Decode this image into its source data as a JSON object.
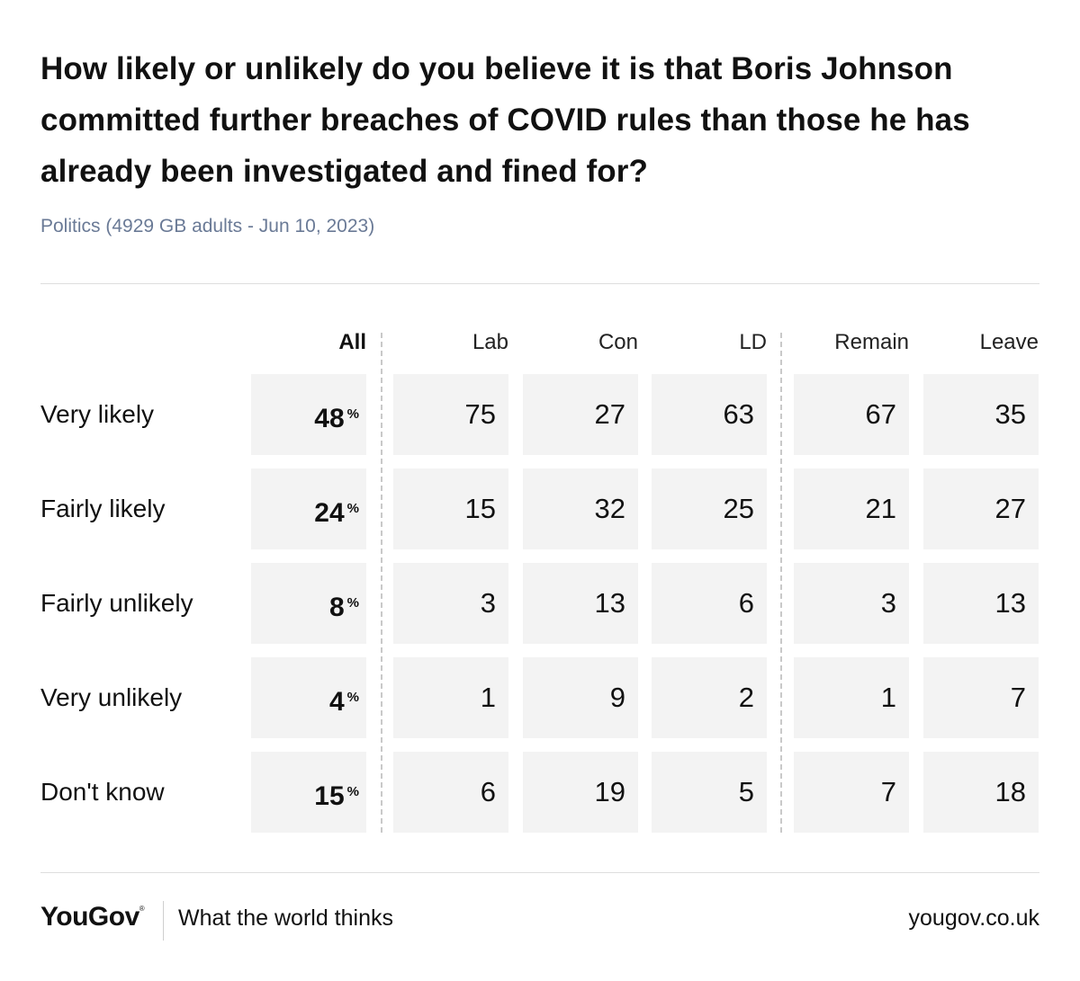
{
  "chart_data": {
    "type": "table",
    "title": "How likely or unlikely do you believe it is that Boris Johnson committed further breaches of COVID rules than those he has already been investigated and fined for?",
    "subtitle": "Politics (4929 GB adults - Jun 10, 2023)",
    "columns": [
      "All",
      "Lab",
      "Con",
      "LD",
      "Remain",
      "Leave"
    ],
    "unit_symbol": "%",
    "rows": [
      {
        "label": "Very likely",
        "values": [
          48,
          75,
          27,
          63,
          67,
          35
        ]
      },
      {
        "label": "Fairly likely",
        "values": [
          24,
          15,
          32,
          25,
          21,
          27
        ]
      },
      {
        "label": "Fairly unlikely",
        "values": [
          8,
          3,
          13,
          6,
          3,
          13
        ]
      },
      {
        "label": "Very unlikely",
        "values": [
          4,
          1,
          9,
          2,
          1,
          7
        ]
      },
      {
        "label": "Don't know",
        "values": [
          15,
          6,
          19,
          5,
          7,
          18
        ]
      }
    ]
  },
  "footer": {
    "logo": "YouGov",
    "logo_mark": "®",
    "tagline": "What the world thinks",
    "url": "yougov.co.uk"
  }
}
